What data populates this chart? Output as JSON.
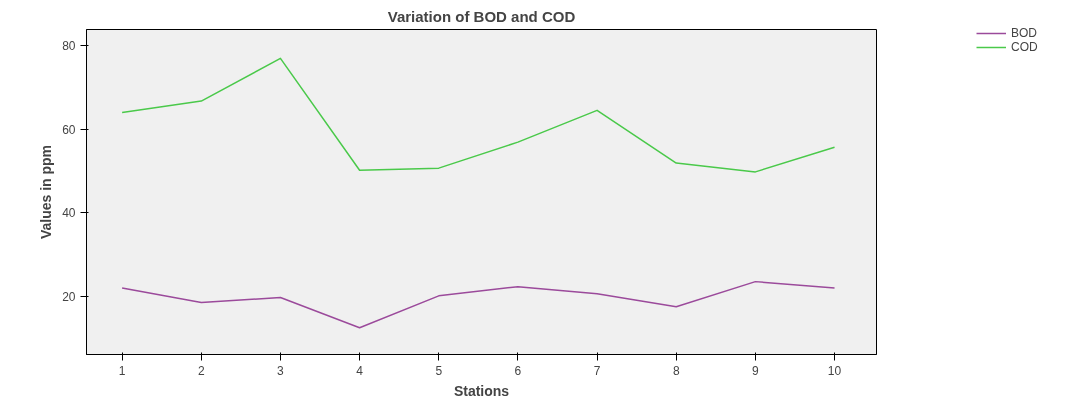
{
  "chart_data": {
    "type": "line",
    "title": "Variation of BOD and COD",
    "xlabel": "Stations",
    "ylabel": "Values in ppm",
    "x": [
      1,
      2,
      3,
      4,
      5,
      6,
      7,
      8,
      9,
      10
    ],
    "xlim": [
      0.55,
      10.53
    ],
    "xticks": [
      1,
      2,
      3,
      4,
      5,
      6,
      7,
      8,
      9,
      10
    ],
    "ylim": [
      6.2,
      83.8
    ],
    "yticks": [
      20,
      40,
      60,
      80
    ],
    "grid": false,
    "legend": "top right",
    "marker": "none",
    "line_style": "solid",
    "series": [
      {
        "name": "BOD",
        "color": "#9b4a9b",
        "values": [
          22.1,
          18.6,
          19.8,
          12.6,
          20.2,
          22.4,
          20.7,
          17.6,
          23.6,
          22.1
        ]
      },
      {
        "name": "COD",
        "color": "#4ac94a",
        "values": [
          64.0,
          66.7,
          76.9,
          50.2,
          50.7,
          56.9,
          64.5,
          51.9,
          49.8,
          55.7
        ]
      }
    ]
  }
}
